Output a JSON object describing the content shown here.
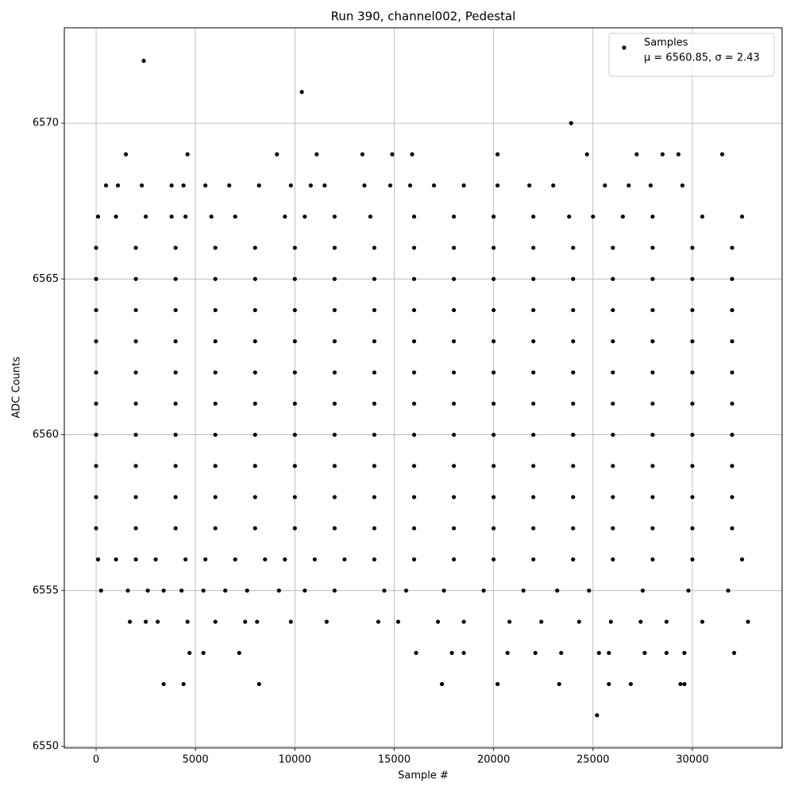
{
  "chart_data": {
    "type": "scatter",
    "title": "Run 390, channel002, Pedestal",
    "x_label": "Sample #",
    "y_label": "ADC Counts",
    "legend_note": "μ = 6560.85, σ = 2.43",
    "legend_position": "upper right",
    "xlim": [
      -1598,
      34514
    ],
    "ylim": [
      6549.95,
      6573.06
    ],
    "xticks": [
      0,
      5000,
      10000,
      15000,
      20000,
      25000,
      30000
    ],
    "yticks": [
      6550,
      6555,
      6560,
      6565,
      6570
    ],
    "grid": true,
    "series": [
      {
        "name": "Samples",
        "color": "#000000",
        "x": [
          0,
          2000,
          4000,
          6000,
          8000,
          10000,
          12000,
          14000,
          16000,
          18000,
          20000,
          22000,
          24000,
          26000,
          28000,
          30000,
          32000,
          0,
          2000,
          4000,
          6000,
          8000,
          10000,
          12000,
          14000,
          16000,
          18000,
          20000,
          22000,
          24000,
          26000,
          28000,
          30000,
          32000,
          0,
          2000,
          4000,
          6000,
          8000,
          10000,
          12000,
          14000,
          16000,
          18000,
          20000,
          22000,
          24000,
          26000,
          28000,
          30000,
          32000,
          0,
          2000,
          4000,
          6000,
          8000,
          10000,
          12000,
          14000,
          16000,
          18000,
          20000,
          22000,
          24000,
          26000,
          28000,
          30000,
          32000,
          0,
          2000,
          4000,
          6000,
          8000,
          10000,
          12000,
          14000,
          16000,
          18000,
          20000,
          22000,
          24000,
          26000,
          28000,
          30000,
          32000,
          0,
          2000,
          4000,
          6000,
          8000,
          10000,
          12000,
          14000,
          16000,
          18000,
          20000,
          22000,
          24000,
          26000,
          28000,
          30000,
          32000,
          0,
          2000,
          4000,
          6000,
          8000,
          10000,
          12000,
          14000,
          16000,
          18000,
          20000,
          22000,
          24000,
          26000,
          28000,
          30000,
          32000,
          0,
          2000,
          4000,
          6000,
          8000,
          10000,
          12000,
          14000,
          16000,
          18000,
          20000,
          22000,
          24000,
          26000,
          28000,
          30000,
          32000,
          0,
          2000,
          4000,
          6000,
          8000,
          10000,
          12000,
          14000,
          16000,
          18000,
          20000,
          22000,
          24000,
          26000,
          28000,
          30000,
          32000,
          0,
          2000,
          4000,
          6000,
          8000,
          10000,
          12000,
          14000,
          16000,
          18000,
          20000,
          22000,
          24000,
          26000,
          28000,
          30000,
          32000,
          100,
          1000,
          2500,
          3800,
          4500,
          5800,
          7000,
          9500,
          10500,
          12000,
          13800,
          16000,
          18000,
          20000,
          22000,
          23800,
          25000,
          26500,
          28000,
          30500,
          32500,
          500,
          1100,
          2300,
          3800,
          4400,
          5500,
          6700,
          8200,
          9800,
          10800,
          11500,
          13500,
          14800,
          15800,
          17000,
          18500,
          20200,
          21800,
          23000,
          25600,
          26800,
          27900,
          29500,
          1500,
          4600,
          9100,
          11100,
          13400,
          14900,
          15900,
          20200,
          24700,
          27200,
          28500,
          29300,
          31500,
          23900,
          10350,
          2400,
          100,
          1000,
          2000,
          3000,
          4500,
          5500,
          7000,
          8500,
          9500,
          11000,
          12500,
          14000,
          16000,
          18000,
          20000,
          22000,
          24000,
          26000,
          28000,
          30000,
          32500,
          250,
          1600,
          2600,
          3400,
          4300,
          5400,
          6500,
          7600,
          9200,
          10500,
          12000,
          14500,
          15600,
          17500,
          19500,
          21500,
          23200,
          24800,
          27500,
          29800,
          31800,
          1700,
          2500,
          3100,
          4600,
          6000,
          7500,
          8100,
          9800,
          11600,
          14200,
          15200,
          17200,
          18500,
          20800,
          22400,
          24300,
          25900,
          27400,
          28700,
          30500,
          32800,
          4700,
          5400,
          7200,
          16100,
          17900,
          18500,
          20700,
          22100,
          23400,
          25300,
          25800,
          27600,
          28700,
          29600,
          32100,
          3400,
          4400,
          8200,
          17400,
          20200,
          23300,
          25800,
          26900,
          29400,
          29600,
          25200
        ],
        "values": [
          6566,
          6566,
          6566,
          6566,
          6566,
          6566,
          6566,
          6566,
          6566,
          6566,
          6566,
          6566,
          6566,
          6566,
          6566,
          6566,
          6566,
          6565,
          6565,
          6565,
          6565,
          6565,
          6565,
          6565,
          6565,
          6565,
          6565,
          6565,
          6565,
          6565,
          6565,
          6565,
          6565,
          6565,
          6564,
          6564,
          6564,
          6564,
          6564,
          6564,
          6564,
          6564,
          6564,
          6564,
          6564,
          6564,
          6564,
          6564,
          6564,
          6564,
          6564,
          6563,
          6563,
          6563,
          6563,
          6563,
          6563,
          6563,
          6563,
          6563,
          6563,
          6563,
          6563,
          6563,
          6563,
          6563,
          6563,
          6563,
          6562,
          6562,
          6562,
          6562,
          6562,
          6562,
          6562,
          6562,
          6562,
          6562,
          6562,
          6562,
          6562,
          6562,
          6562,
          6562,
          6562,
          6561,
          6561,
          6561,
          6561,
          6561,
          6561,
          6561,
          6561,
          6561,
          6561,
          6561,
          6561,
          6561,
          6561,
          6561,
          6561,
          6561,
          6560,
          6560,
          6560,
          6560,
          6560,
          6560,
          6560,
          6560,
          6560,
          6560,
          6560,
          6560,
          6560,
          6560,
          6560,
          6560,
          6560,
          6559,
          6559,
          6559,
          6559,
          6559,
          6559,
          6559,
          6559,
          6559,
          6559,
          6559,
          6559,
          6559,
          6559,
          6559,
          6559,
          6559,
          6558,
          6558,
          6558,
          6558,
          6558,
          6558,
          6558,
          6558,
          6558,
          6558,
          6558,
          6558,
          6558,
          6558,
          6558,
          6558,
          6558,
          6557,
          6557,
          6557,
          6557,
          6557,
          6557,
          6557,
          6557,
          6557,
          6557,
          6557,
          6557,
          6557,
          6557,
          6557,
          6557,
          6557,
          6567,
          6567,
          6567,
          6567,
          6567,
          6567,
          6567,
          6567,
          6567,
          6567,
          6567,
          6567,
          6567,
          6567,
          6567,
          6567,
          6567,
          6567,
          6567,
          6567,
          6567,
          6568,
          6568,
          6568,
          6568,
          6568,
          6568,
          6568,
          6568,
          6568,
          6568,
          6568,
          6568,
          6568,
          6568,
          6568,
          6568,
          6568,
          6568,
          6568,
          6568,
          6568,
          6568,
          6568,
          6569,
          6569,
          6569,
          6569,
          6569,
          6569,
          6569,
          6569,
          6569,
          6569,
          6569,
          6569,
          6569,
          6570,
          6571,
          6572,
          6556,
          6556,
          6556,
          6556,
          6556,
          6556,
          6556,
          6556,
          6556,
          6556,
          6556,
          6556,
          6556,
          6556,
          6556,
          6556,
          6556,
          6556,
          6556,
          6556,
          6556,
          6555,
          6555,
          6555,
          6555,
          6555,
          6555,
          6555,
          6555,
          6555,
          6555,
          6555,
          6555,
          6555,
          6555,
          6555,
          6555,
          6555,
          6555,
          6555,
          6555,
          6555,
          6554,
          6554,
          6554,
          6554,
          6554,
          6554,
          6554,
          6554,
          6554,
          6554,
          6554,
          6554,
          6554,
          6554,
          6554,
          6554,
          6554,
          6554,
          6554,
          6554,
          6554,
          6553,
          6553,
          6553,
          6553,
          6553,
          6553,
          6553,
          6553,
          6553,
          6553,
          6553,
          6553,
          6553,
          6553,
          6553,
          6552,
          6552,
          6552,
          6552,
          6552,
          6552,
          6552,
          6552,
          6552,
          6552,
          6551
        ]
      }
    ]
  }
}
